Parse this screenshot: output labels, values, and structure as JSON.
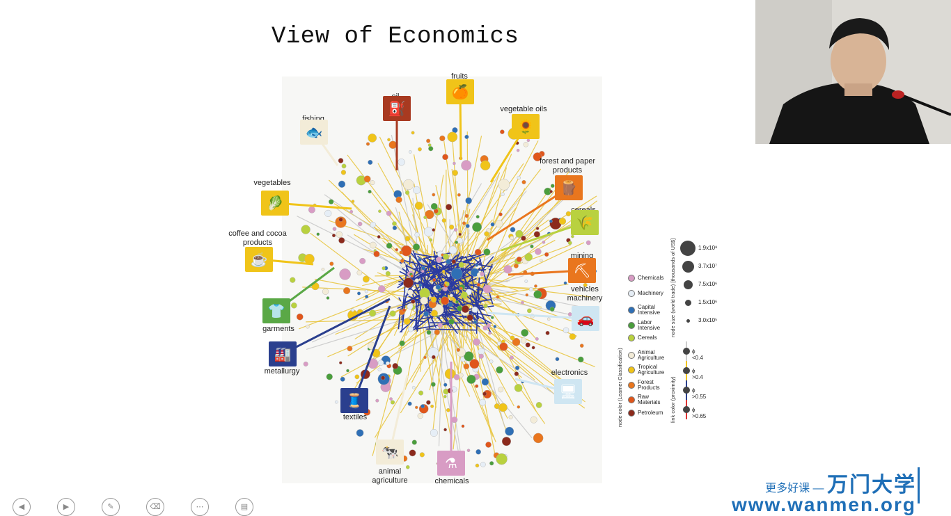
{
  "slide": {
    "title": "View of Economics"
  },
  "categories": [
    {
      "id": "fruits",
      "label": "fruits",
      "color": "#f0c419",
      "icon": "fruit-icon",
      "glyph": "🍊"
    },
    {
      "id": "oil",
      "label": "oil",
      "color": "#a83a20",
      "icon": "oil-rig-icon",
      "glyph": "⛽"
    },
    {
      "id": "veg_oils",
      "label": "vegetable oils",
      "color": "#f0c419",
      "icon": "sunflower-icon",
      "glyph": "🌻"
    },
    {
      "id": "fishing",
      "label": "fishing",
      "color": "#f3ecd8",
      "icon": "fish-icon",
      "glyph": "🐟"
    },
    {
      "id": "forest",
      "label": "forest and paper\nproducts",
      "color": "#e9761e",
      "icon": "log-icon",
      "glyph": "🪵"
    },
    {
      "id": "vegetables",
      "label": "vegetables",
      "color": "#f0c419",
      "icon": "vegetable-icon",
      "glyph": "🥬"
    },
    {
      "id": "cereals",
      "label": "cereals",
      "color": "#b9d13f",
      "icon": "wheat-icon",
      "glyph": "🌾"
    },
    {
      "id": "coffee",
      "label": "coffee and cocoa\nproducts",
      "color": "#f0c419",
      "icon": "coffee-bar-icon",
      "glyph": "☕"
    },
    {
      "id": "mining",
      "label": "mining",
      "color": "#e9761e",
      "icon": "mine-cart-icon",
      "glyph": "⛏"
    },
    {
      "id": "vehicles",
      "label": "vehicles\nmachinery",
      "color": "#cfe6f2",
      "icon": "car-icon",
      "glyph": "🚗"
    },
    {
      "id": "garments",
      "label": "garments",
      "color": "#5aa846",
      "icon": "garment-icon",
      "glyph": "👕"
    },
    {
      "id": "metallurgy",
      "label": "metallurgy",
      "color": "#2a3f8e",
      "icon": "furnace-icon",
      "glyph": "🏭"
    },
    {
      "id": "electronics",
      "label": "electronics",
      "color": "#cfe6f2",
      "icon": "computer-icon",
      "glyph": "🖥"
    },
    {
      "id": "textiles",
      "label": "textiles",
      "color": "#2a3f8e",
      "icon": "fabric-icon",
      "glyph": "🧵"
    },
    {
      "id": "animal",
      "label": "animal\nagriculture",
      "color": "#f3ecd8",
      "icon": "cow-icon",
      "glyph": "🐄"
    },
    {
      "id": "chemicals",
      "label": "chemicals",
      "color": "#d89cc4",
      "icon": "flask-icon",
      "glyph": "⚗"
    }
  ],
  "legend_node_color": {
    "title": "node color (Leamer Classification)",
    "items": [
      {
        "label": "Chemicals",
        "color": "#d89cc4"
      },
      {
        "label": "Machinery",
        "color": "#e6eef6"
      },
      {
        "label": "Capital\nIntensive",
        "color": "#2f6fb5"
      },
      {
        "label": "Labor\nIntensive",
        "color": "#4a9e3c"
      },
      {
        "label": "Cereals",
        "color": "#b9d13f"
      },
      {
        "label": "Animal\nAgriculture",
        "color": "#f3ecd8"
      },
      {
        "label": "Tropical\nAgriculture",
        "color": "#f0c419"
      },
      {
        "label": "Forest\nProducts",
        "color": "#e9761e"
      },
      {
        "label": "Raw\nMaterials",
        "color": "#e0561b"
      },
      {
        "label": "Petroleum",
        "color": "#8c2a1c"
      }
    ]
  },
  "legend_node_size": {
    "title": "node size (world trade) [thousands of US$]",
    "items": [
      "1.9x10⁸",
      "3.7x10⁷",
      "7.5x10⁶",
      "1.5x10⁶",
      "3.0x10⁵"
    ]
  },
  "legend_link_color": {
    "title": "link color (proximity)",
    "items": [
      {
        "label": "ϕ <0.4",
        "color": "#cccccc"
      },
      {
        "label": "ϕ >0.4",
        "color": "#f0c419"
      },
      {
        "label": "ϕ >0.55",
        "color": "#2a3f8e"
      },
      {
        "label": "ϕ >0.65",
        "color": "#d33"
      }
    ]
  },
  "brand": {
    "slogan": "更多好课 —",
    "name": "万门大学",
    "url": "www.wanmen.org"
  },
  "colors": {
    "brand_blue": "#1f6fb7",
    "yellow_link": "#e8c43a",
    "blue_link": "#2a3aa0"
  }
}
